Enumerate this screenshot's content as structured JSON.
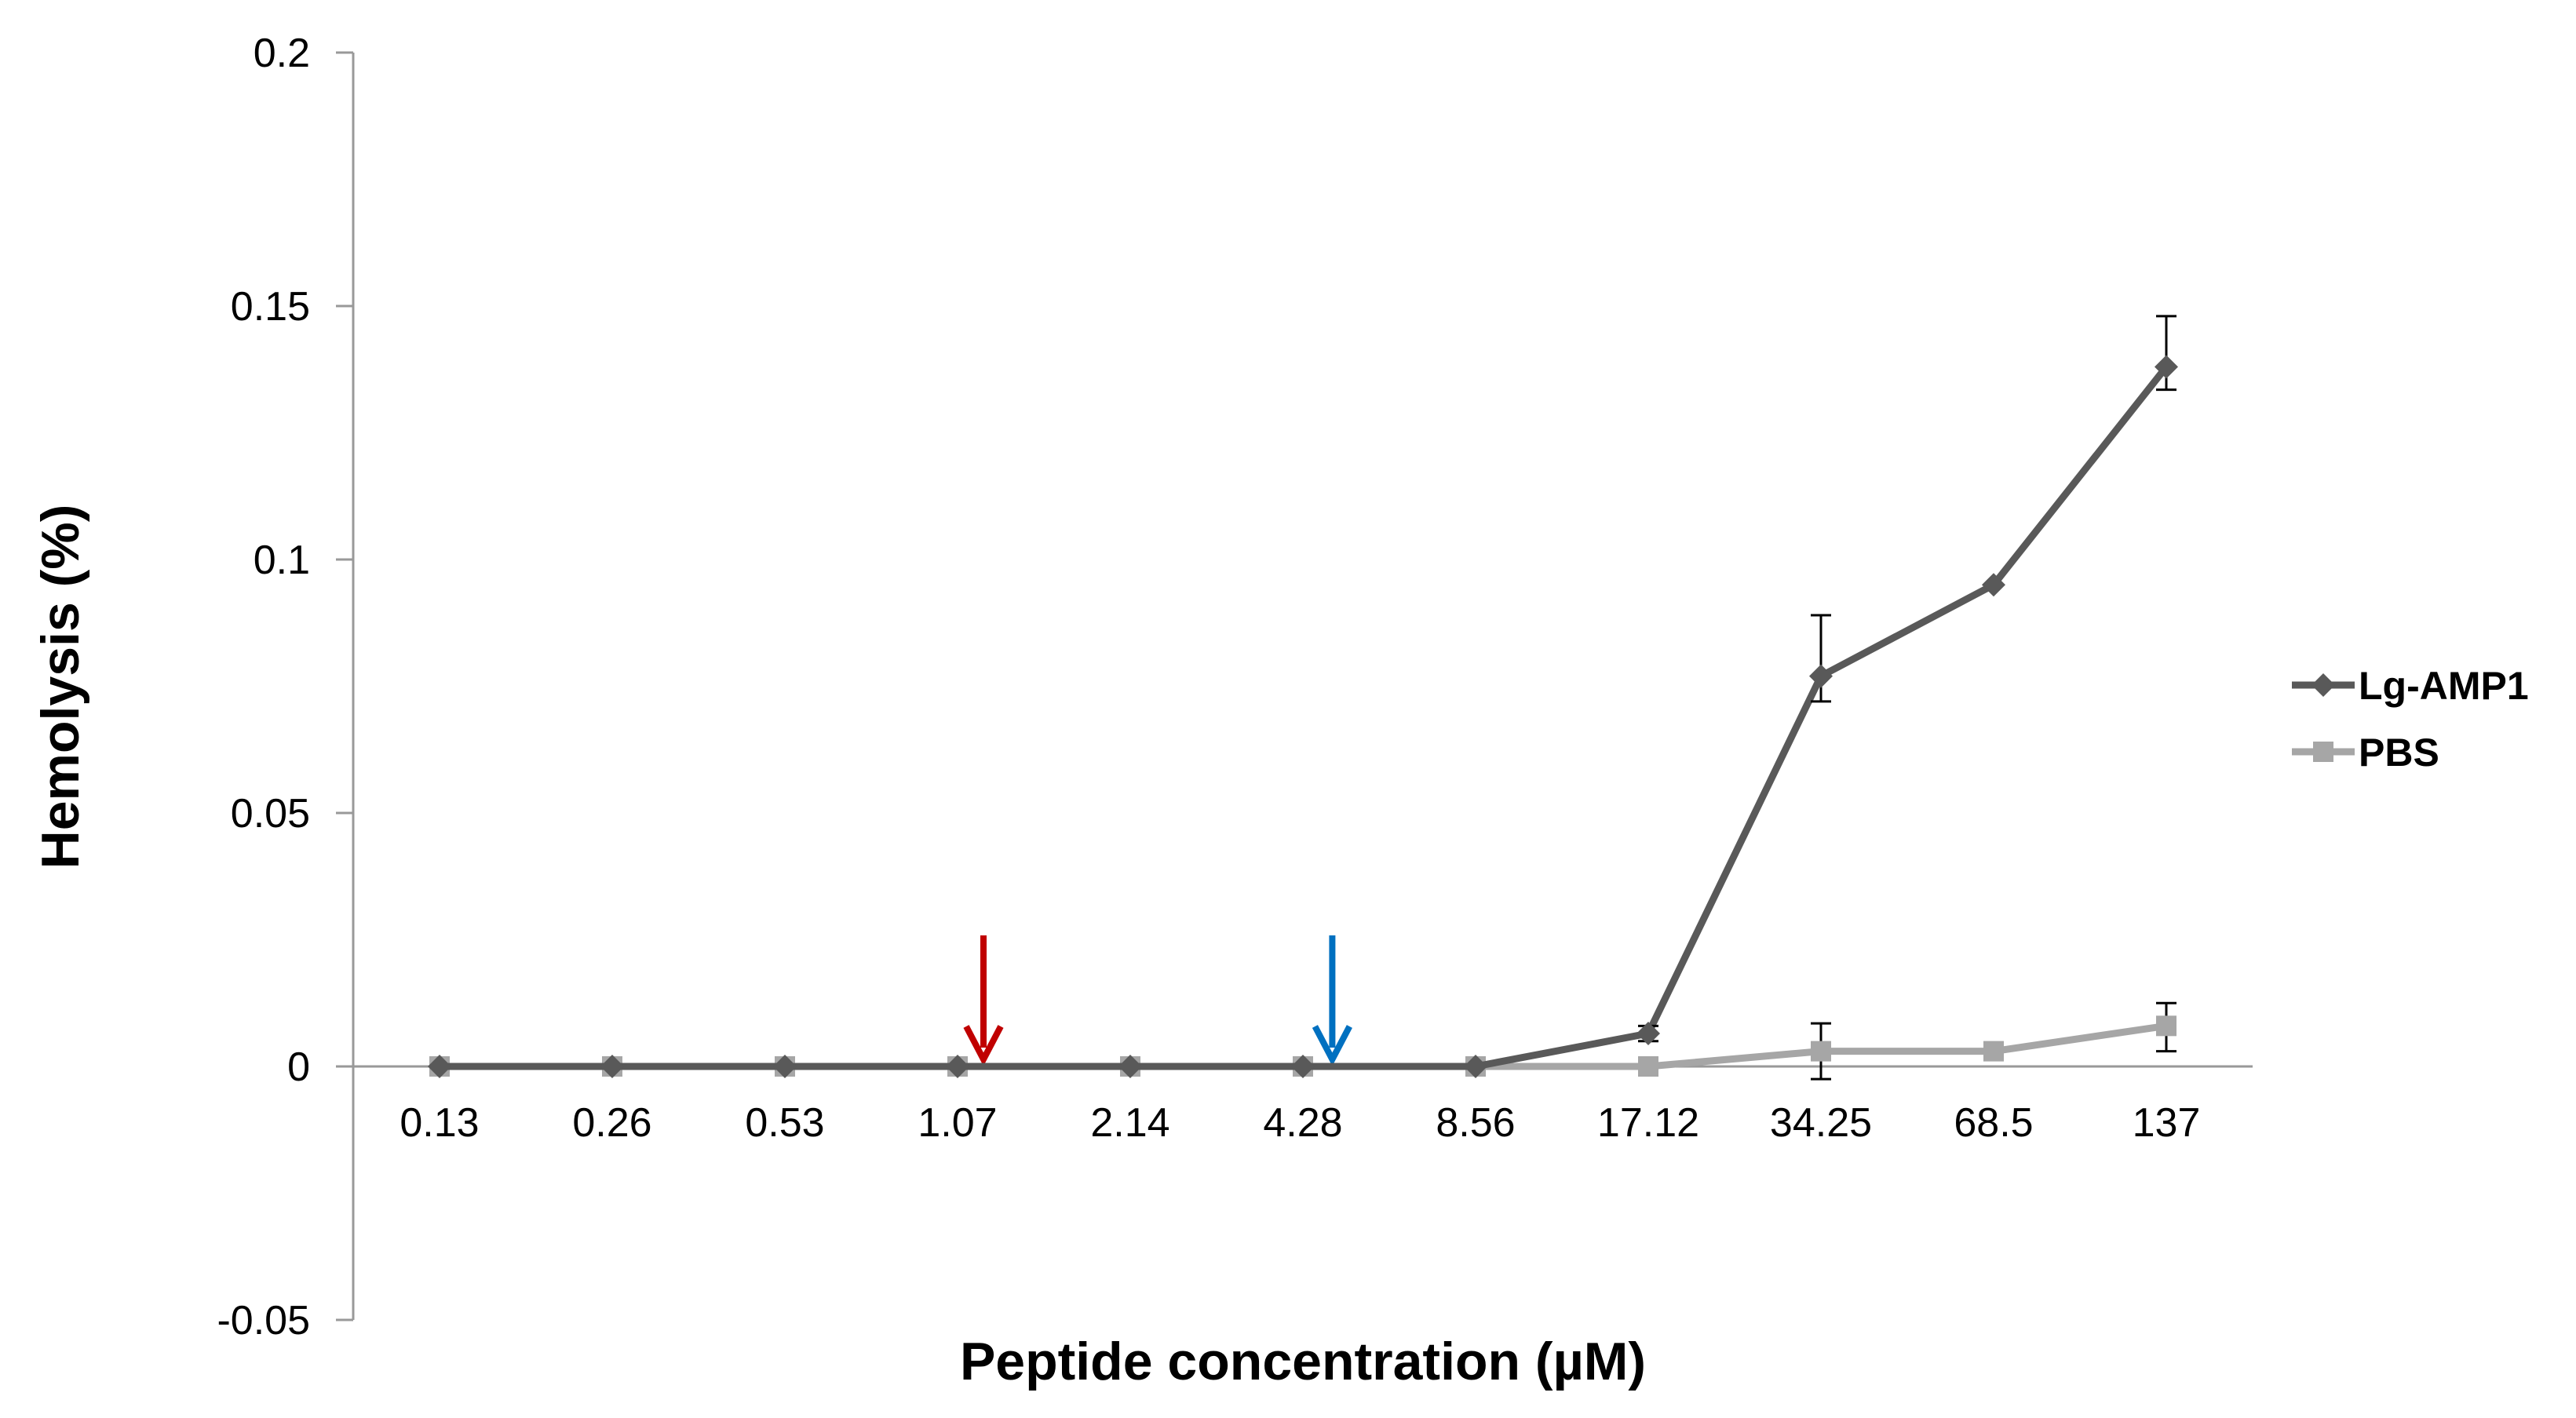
{
  "chart_data": {
    "type": "line",
    "title": "",
    "xlabel": "Peptide concentration (µM)",
    "ylabel": "Hemolysis (%)",
    "categories": [
      "0.13",
      "0.26",
      "0.53",
      "1.07",
      "2.14",
      "4.28",
      "8.56",
      "17.12",
      "34.25",
      "68.5",
      "137"
    ],
    "ylim": [
      -0.05,
      0.2
    ],
    "yticks": [
      -0.05,
      0,
      0.05,
      0.1,
      0.15,
      0.2
    ],
    "ytick_labels": [
      "-0.05",
      "0",
      "0.05",
      "0.1",
      "0.15",
      "0.2"
    ],
    "grid": false,
    "legend_position": "right",
    "series": [
      {
        "name": "Lg-AMP1",
        "marker": "diamond",
        "color": "#595959",
        "values": [
          0,
          0,
          0,
          0,
          0,
          0,
          0,
          0.0065,
          0.077,
          0.095,
          0.138
        ],
        "error": [
          0,
          0,
          0,
          0,
          0,
          0,
          0,
          0.0015,
          0.012,
          0,
          0.01
        ],
        "error_low": [
          0,
          0,
          0,
          0,
          0,
          0,
          0,
          0.0015,
          0.005,
          0,
          0.0045
        ]
      },
      {
        "name": "PBS",
        "marker": "square",
        "color": "#a6a6a6",
        "values": [
          0,
          0,
          0,
          0,
          0,
          0,
          0,
          0,
          0.003,
          0.003,
          0.008
        ],
        "error": [
          0,
          0,
          0,
          0,
          0,
          0,
          0,
          0,
          0.0055,
          0,
          0.0045
        ],
        "error_low": [
          0,
          0,
          0,
          0,
          0,
          0,
          0,
          0,
          0.0055,
          0,
          0.005
        ]
      }
    ],
    "annotations": [
      {
        "type": "arrow",
        "color": "#c00000",
        "x_category_index": 3.15,
        "name": "red-arrow"
      },
      {
        "type": "arrow",
        "color": "#0070c0",
        "x_category_index": 5.17,
        "name": "blue-arrow"
      }
    ],
    "colors": {
      "axis": "#999999",
      "red_arrow": "#c00000",
      "blue_arrow": "#0070c0"
    }
  }
}
